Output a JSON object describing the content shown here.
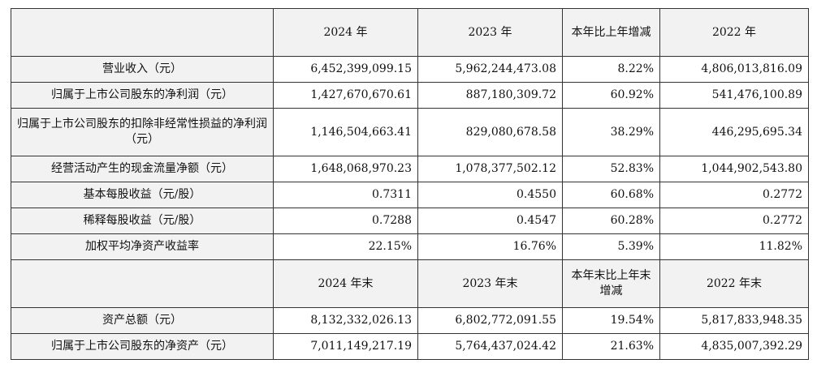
{
  "header_years": [
    "2024 年",
    "2023 年",
    "本年比上年增减",
    "2022 年"
  ],
  "rows": [
    {
      "label": "营业收入（元）",
      "values": [
        "6,452,399,099.15",
        "5,962,244,473.08",
        "8.22%",
        "4,806,013,816.09"
      ]
    },
    {
      "label": "归属于上市公司股东的净利润（元）",
      "values": [
        "1,427,670,670.61",
        "887,180,309.72",
        "60.92%",
        "541,476,100.89"
      ]
    },
    {
      "label": "归属于上市公司股东的扣除非经常性损益的净利润（元）",
      "values": [
        "1,146,504,663.41",
        "829,080,678.58",
        "38.29%",
        "446,295,695.34"
      ]
    },
    {
      "label": "经营活动产生的现金流量净额（元）",
      "values": [
        "1,648,068,970.23",
        "1,078,377,502.12",
        "52.83%",
        "1,044,902,543.80"
      ]
    },
    {
      "label": "基本每股收益（元/股）",
      "values": [
        "0.7311",
        "0.4550",
        "60.68%",
        "0.2772"
      ]
    },
    {
      "label": "稀释每股收益（元/股）",
      "values": [
        "0.7288",
        "0.4547",
        "60.28%",
        "0.2772"
      ]
    },
    {
      "label": "加权平均净资产收益率",
      "values": [
        "22.15%",
        "16.76%",
        "5.39%",
        "11.82%"
      ]
    }
  ],
  "header_yearend": [
    "2024 年末",
    "2023 年末",
    "本年末比上年末增减",
    "2022 年末"
  ],
  "rows2": [
    {
      "label": "资产总额（元）",
      "values": [
        "8,132,332,026.13",
        "6,802,772,091.55",
        "19.54%",
        "5,817,833,948.35"
      ]
    },
    {
      "label": "归属于上市公司股东的净资产（元）",
      "values": [
        "7,011,149,217.19",
        "5,764,437,024.42",
        "21.63%",
        "4,835,007,392.29"
      ]
    }
  ]
}
